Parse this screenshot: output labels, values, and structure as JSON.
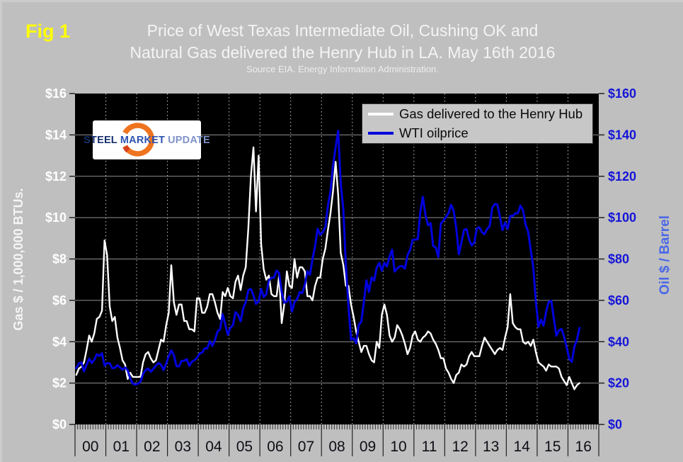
{
  "header": {
    "figure_label": "Fig 1",
    "title_line1": "Price of West Texas Intermediate Oil, Cushing OK and",
    "title_line2": "Natural Gas delivered the Henry Hub in LA. May 16th 2016",
    "subtitle": "Source EIA. Energy Information Administration."
  },
  "logo": {
    "part1": "STEEL",
    "part2": "MARKET",
    "part3": "UPDATE"
  },
  "chart_data": {
    "type": "line",
    "title": "Price of West Texas Intermediate Oil, Cushing OK and Natural Gas delivered the Henry Hub in LA. May 16th 2016",
    "x_unit": "monthly values from 2000-01 to 2016-05",
    "x_tick_labels": [
      "00",
      "01",
      "02",
      "03",
      "04",
      "05",
      "06",
      "07",
      "08",
      "09",
      "10",
      "11",
      "12",
      "13",
      "14",
      "15",
      "16"
    ],
    "plot_bg": "#000000",
    "grid": {
      "h_color": "#8f8f8f",
      "v_color": "#c9c9c9",
      "horizontal": "solid",
      "vertical": "dotted"
    },
    "left_axis": {
      "title": "Gas $ / 1,000,000 BTUs.",
      "color": "#ffffff",
      "min": 0,
      "max": 16,
      "tick_labels": [
        "$0",
        "$2",
        "$4",
        "$6",
        "$8",
        "$10",
        "$12",
        "$14",
        "$16"
      ]
    },
    "right_axis": {
      "title": "Oil $ / Barrel",
      "color": "#1515d8",
      "title_color": "#4a67e8",
      "min": 0,
      "max": 160,
      "tick_labels": [
        "$0",
        "$20",
        "$40",
        "$60",
        "$80",
        "$100",
        "$120",
        "$140",
        "$160"
      ]
    },
    "legend": [
      {
        "label": "Gas delivered to the Henry Hub",
        "color": "#ffffff"
      },
      {
        "label": "WTI oilprice",
        "color": "#0202dd"
      }
    ],
    "series": [
      {
        "name": "Gas delivered to the Henry Hub",
        "axis": "left",
        "color": "#ffffff",
        "stroke_width": 2.4,
        "values": [
          2.4,
          2.7,
          2.8,
          3.0,
          3.6,
          4.3,
          4.0,
          4.4,
          5.1,
          5.2,
          5.5,
          8.9,
          8.2,
          5.7,
          5.0,
          5.2,
          4.2,
          3.7,
          3.1,
          2.9,
          2.2,
          2.5,
          2.3,
          2.3,
          2.3,
          2.3,
          3.0,
          3.4,
          3.5,
          3.2,
          3.0,
          3.1,
          3.6,
          4.1,
          4.0,
          4.8,
          5.4,
          7.7,
          5.9,
          5.3,
          5.8,
          5.8,
          5.0,
          5.0,
          4.6,
          4.6,
          4.5,
          6.1,
          6.1,
          5.4,
          5.4,
          5.7,
          6.3,
          6.3,
          5.9,
          5.4,
          5.1,
          6.4,
          6.2,
          6.6,
          6.2,
          6.1,
          6.9,
          7.2,
          6.5,
          7.2,
          7.6,
          9.5,
          12.0,
          13.4,
          10.3,
          13.0,
          8.7,
          7.5,
          7.0,
          7.2,
          6.3,
          6.2,
          6.2,
          7.2,
          4.9,
          5.8,
          7.4,
          6.7,
          6.6,
          8.0,
          7.1,
          7.6,
          7.6,
          7.4,
          6.2,
          6.2,
          6.0,
          6.7,
          7.1,
          7.1,
          8.0,
          8.5,
          9.4,
          10.2,
          11.3,
          12.7,
          11.1,
          8.3,
          7.7,
          6.7,
          6.7,
          5.8,
          5.2,
          4.5,
          4.0,
          3.5,
          3.8,
          3.8,
          3.4,
          3.1,
          3.0,
          4.0,
          3.7,
          5.3,
          5.8,
          5.3,
          4.3,
          4.0,
          4.2,
          4.8,
          4.6,
          4.3,
          3.9,
          3.4,
          3.7,
          4.3,
          4.5,
          4.1,
          4.0,
          4.2,
          4.3,
          4.5,
          4.4,
          4.1,
          3.9,
          3.6,
          3.2,
          3.2,
          2.7,
          2.5,
          2.2,
          2.0,
          2.4,
          2.5,
          2.9,
          2.8,
          2.9,
          3.3,
          3.5,
          3.3,
          3.3,
          3.3,
          3.8,
          4.2,
          4.0,
          3.8,
          3.6,
          3.4,
          3.6,
          3.7,
          3.6,
          4.2,
          4.7,
          6.3,
          4.9,
          4.7,
          4.6,
          4.6,
          4.0,
          3.9,
          4.0,
          3.8,
          4.1,
          3.5,
          3.0,
          2.9,
          2.8,
          2.6,
          2.9,
          2.8,
          2.8,
          2.8,
          2.7,
          2.3,
          2.1,
          1.9,
          2.3,
          2.0,
          1.7,
          1.9,
          2.0
        ]
      },
      {
        "name": "WTI oilprice",
        "axis": "right",
        "color": "#0202dd",
        "stroke_width": 3,
        "values": [
          27.2,
          29.5,
          29.9,
          25.7,
          28.8,
          31.8,
          29.7,
          31.3,
          33.9,
          33.1,
          34.4,
          28.5,
          29.6,
          29.6,
          27.2,
          27.4,
          28.6,
          27.6,
          26.5,
          27.5,
          26.2,
          22.2,
          19.7,
          19.3,
          19.7,
          20.7,
          24.4,
          26.3,
          27.0,
          25.5,
          26.9,
          28.4,
          29.7,
          28.9,
          26.3,
          29.4,
          33.0,
          35.8,
          33.5,
          28.2,
          28.1,
          30.7,
          30.8,
          31.6,
          28.3,
          30.3,
          31.1,
          32.2,
          34.3,
          34.7,
          36.8,
          36.7,
          40.3,
          38.0,
          40.8,
          44.9,
          46.0,
          53.3,
          48.5,
          43.3,
          46.8,
          48.0,
          54.3,
          53.0,
          49.8,
          56.3,
          59.0,
          65.0,
          65.5,
          62.4,
          58.3,
          59.4,
          65.5,
          61.6,
          62.9,
          69.7,
          70.9,
          71.0,
          74.4,
          73.1,
          63.9,
          58.9,
          59.4,
          62.0,
          54.6,
          59.3,
          60.6,
          64.0,
          63.5,
          67.5,
          74.1,
          72.4,
          79.9,
          86.2,
          94.6,
          91.7,
          92.9,
          95.4,
          105.6,
          112.6,
          125.4,
          133.9,
          142.0,
          116.6,
          103.9,
          76.7,
          57.4,
          41.0,
          41.7,
          39.2,
          48.0,
          49.8,
          59.2,
          69.7,
          64.1,
          71.1,
          69.5,
          75.8,
          78.1,
          74.3,
          78.2,
          76.4,
          81.2,
          84.5,
          73.9,
          75.4,
          76.4,
          76.6,
          75.3,
          81.9,
          84.3,
          89.2,
          89.4,
          89.6,
          103.0,
          110.0,
          101.3,
          96.3,
          97.3,
          86.3,
          85.6,
          81.0,
          97.2,
          98.6,
          100.3,
          102.3,
          106.2,
          103.3,
          94.7,
          82.3,
          87.9,
          94.1,
          94.5,
          89.5,
          86.5,
          87.9,
          94.8,
          95.3,
          92.9,
          92.0,
          94.5,
          95.8,
          104.7,
          106.6,
          106.3,
          100.5,
          93.9,
          97.6,
          94.6,
          100.8,
          100.8,
          102.1,
          102.2,
          105.8,
          103.6,
          96.5,
          93.2,
          84.4,
          75.8,
          59.3,
          47.2,
          50.6,
          47.8,
          54.5,
          59.3,
          59.8,
          51.2,
          42.9,
          45.5,
          46.2,
          42.4,
          37.2,
          31.7,
          30.3,
          37.6,
          41.0,
          46.7
        ]
      }
    ]
  }
}
